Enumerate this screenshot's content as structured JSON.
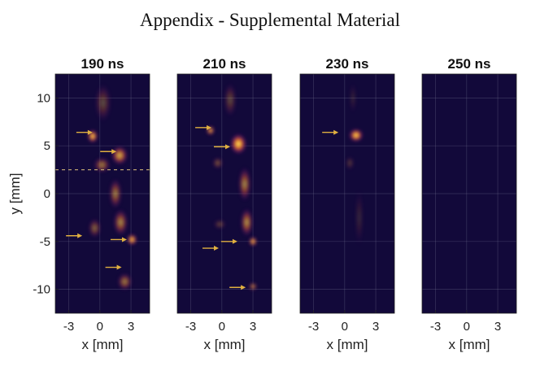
{
  "header": {
    "title": "Appendix - Supplemental Material"
  },
  "chart_data": {
    "type": "heatmap",
    "colormap": "inferno",
    "shared_axes": {
      "xlabel": "x [mm]",
      "ylabel": "y [mm]",
      "xlim": [
        -4.3,
        4.8
      ],
      "ylim": [
        -12.5,
        12.5
      ],
      "xticks": [
        "-3",
        "0",
        "3"
      ],
      "yticks": [
        "10",
        "5",
        "0",
        "-5",
        "-10"
      ],
      "grid": true
    },
    "panels": [
      {
        "title": "190 ns",
        "dashed_line_y": 2.5,
        "arrows": [
          {
            "x": -0.7,
            "y": 6.4
          },
          {
            "x": 1.6,
            "y": 4.4
          },
          {
            "x": -1.7,
            "y": -4.4
          },
          {
            "x": 2.6,
            "y": -4.8
          },
          {
            "x": 2.1,
            "y": -7.7
          }
        ],
        "blobs": [
          {
            "x": -0.7,
            "y": 6.0,
            "sx": 0.5,
            "sy": 0.7,
            "intensity": 1.0
          },
          {
            "x": 1.9,
            "y": 4.0,
            "sx": 0.8,
            "sy": 1.0,
            "intensity": 0.8
          },
          {
            "x": 0.2,
            "y": 3.0,
            "sx": 0.8,
            "sy": 0.8,
            "intensity": 0.55
          },
          {
            "x": 1.5,
            "y": 0.0,
            "sx": 0.6,
            "sy": 1.6,
            "intensity": 0.55
          },
          {
            "x": 2.0,
            "y": -3.0,
            "sx": 0.7,
            "sy": 1.4,
            "intensity": 0.6
          },
          {
            "x": 3.1,
            "y": -4.8,
            "sx": 0.5,
            "sy": 0.6,
            "intensity": 0.95
          },
          {
            "x": -0.5,
            "y": -3.6,
            "sx": 0.6,
            "sy": 1.0,
            "intensity": 0.45
          },
          {
            "x": 2.4,
            "y": -9.2,
            "sx": 0.7,
            "sy": 0.9,
            "intensity": 0.55
          },
          {
            "x": 0.3,
            "y": 9.5,
            "sx": 0.8,
            "sy": 2.0,
            "intensity": 0.3
          }
        ]
      },
      {
        "title": "210 ns",
        "dashed_line_y": null,
        "arrows": [
          {
            "x": -1.0,
            "y": 6.9
          },
          {
            "x": 0.8,
            "y": 4.9
          },
          {
            "x": 1.5,
            "y": -5.0
          },
          {
            "x": -0.3,
            "y": -5.7
          },
          {
            "x": 2.3,
            "y": -9.8
          }
        ],
        "blobs": [
          {
            "x": -1.1,
            "y": 6.6,
            "sx": 0.4,
            "sy": 0.5,
            "intensity": 0.9
          },
          {
            "x": 1.6,
            "y": 5.2,
            "sx": 0.8,
            "sy": 1.1,
            "intensity": 1.0
          },
          {
            "x": 2.2,
            "y": 1.0,
            "sx": 0.6,
            "sy": 1.8,
            "intensity": 0.6
          },
          {
            "x": 2.4,
            "y": -3.0,
            "sx": 0.6,
            "sy": 1.5,
            "intensity": 0.65
          },
          {
            "x": 3.0,
            "y": -5.0,
            "sx": 0.4,
            "sy": 0.5,
            "intensity": 0.95
          },
          {
            "x": -0.4,
            "y": 3.2,
            "sx": 0.5,
            "sy": 0.6,
            "intensity": 0.4
          },
          {
            "x": -0.2,
            "y": -3.2,
            "sx": 0.6,
            "sy": 0.5,
            "intensity": 0.3
          },
          {
            "x": 3.0,
            "y": -9.7,
            "sx": 0.4,
            "sy": 0.4,
            "intensity": 0.7
          },
          {
            "x": 0.8,
            "y": 9.8,
            "sx": 0.6,
            "sy": 1.8,
            "intensity": 0.3
          }
        ]
      },
      {
        "title": "230 ns",
        "dashed_line_y": null,
        "arrows": [
          {
            "x": -0.6,
            "y": 6.4
          }
        ],
        "blobs": [
          {
            "x": 1.1,
            "y": 6.1,
            "sx": 0.7,
            "sy": 0.7,
            "intensity": 1.0
          },
          {
            "x": 0.5,
            "y": 3.2,
            "sx": 0.4,
            "sy": 0.7,
            "intensity": 0.25
          },
          {
            "x": 1.4,
            "y": -2.5,
            "sx": 0.4,
            "sy": 3.0,
            "intensity": 0.15
          },
          {
            "x": 0.8,
            "y": 10.0,
            "sx": 0.3,
            "sy": 1.6,
            "intensity": 0.15
          }
        ]
      },
      {
        "title": "250 ns",
        "dashed_line_y": null,
        "arrows": [],
        "blobs": []
      }
    ]
  },
  "colors": {
    "background": "#12093a",
    "arrow": "#e0b040",
    "grid": "#6a6a8a"
  }
}
